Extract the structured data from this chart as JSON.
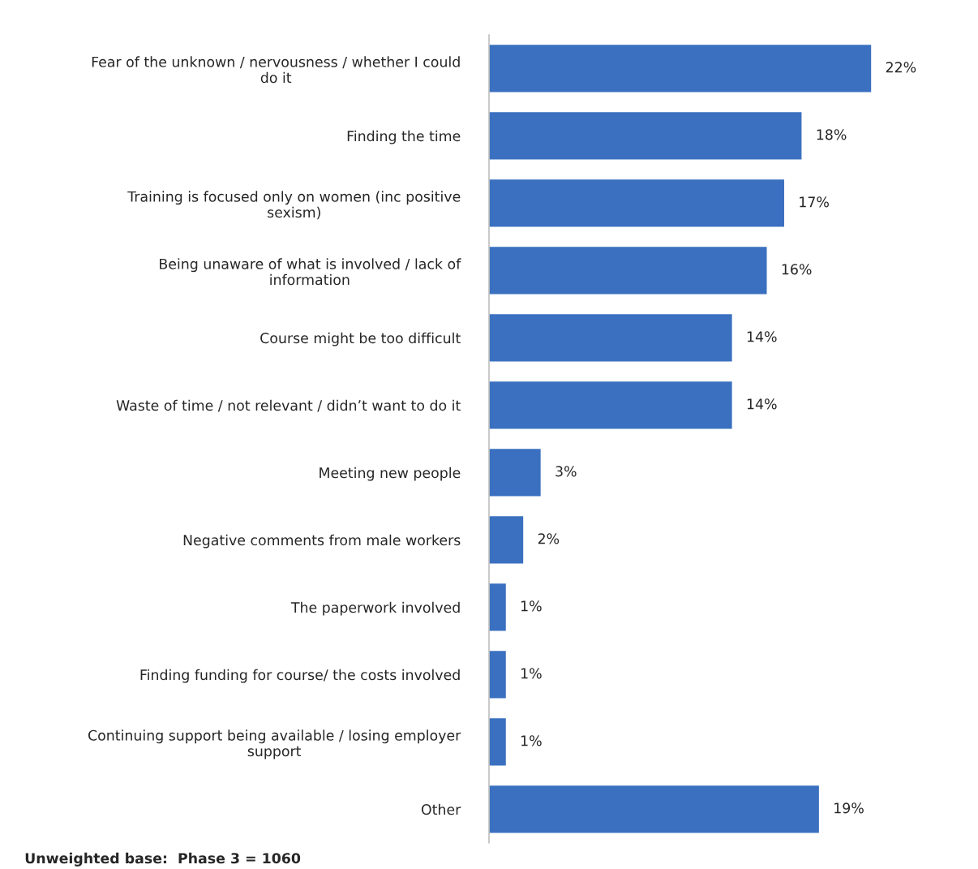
{
  "chart_data": {
    "type": "bar",
    "orientation": "horizontal",
    "categories": [
      "Fear of the unknown / nervousness / whether I could do it",
      "Finding the time",
      "Training is focused only on women (inc positive sexism)",
      "Being unaware of what is involved / lack of information",
      "Course might be too difficult",
      "Waste of time / not relevant / didn’t want to do it",
      "Meeting new people",
      "Negative comments from male workers",
      "The paperwork involved",
      "Finding funding for course/ the costs involved",
      "Continuing support being available / losing employer support",
      "Other"
    ],
    "values": [
      22,
      18,
      17,
      16,
      14,
      14,
      3,
      2,
      1,
      1,
      1,
      19
    ],
    "value_labels": [
      "22%",
      "18%",
      "17%",
      "16%",
      "14%",
      "14%",
      "3%",
      "2%",
      "1%",
      "1%",
      "1%",
      "19%"
    ],
    "color": "#3a70bf",
    "annotations": [
      "Unweighted base:  Phase 3 = 1060"
    ],
    "grid": false,
    "legend": false
  }
}
